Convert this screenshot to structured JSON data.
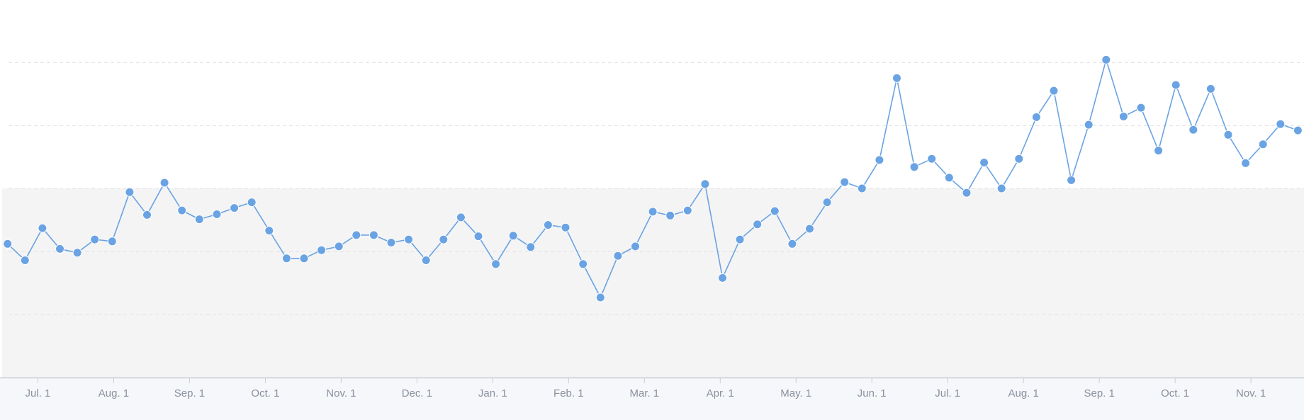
{
  "chart_data": {
    "type": "line",
    "title": "",
    "xlabel": "",
    "ylabel": "",
    "x_tick_labels": [
      "Jul. 1",
      "Aug. 1",
      "Sep. 1",
      "Oct. 1",
      "Nov. 1",
      "Dec. 1",
      "Jan. 1",
      "Feb. 1",
      "Mar. 1",
      "Apr. 1",
      "May. 1",
      "Jun. 1",
      "Jul. 1",
      "Aug. 1",
      "Sep. 1",
      "Oct. 1",
      "Nov. 1"
    ],
    "x_tick_month_offsets": [
      0,
      1,
      2,
      3,
      4,
      5,
      6,
      7,
      8,
      9,
      10,
      11,
      12,
      13,
      14,
      15,
      16
    ],
    "x_range_months": [
      -0.5,
      16.7
    ],
    "y_range": [
      0,
      6
    ],
    "y_gridlines": [
      1,
      2,
      3,
      4,
      5
    ],
    "shaded_band_y": [
      0,
      3
    ],
    "grid": true,
    "legend": "none",
    "series": [
      {
        "color": "#6aa3e3",
        "x_months": [
          -0.4,
          -0.17,
          0.06,
          0.29,
          0.52,
          0.75,
          0.98,
          1.21,
          1.44,
          1.67,
          1.9,
          2.13,
          2.36,
          2.59,
          2.82,
          3.05,
          3.28,
          3.51,
          3.74,
          3.97,
          4.2,
          4.43,
          4.66,
          4.89,
          5.12,
          5.35,
          5.58,
          5.81,
          6.04,
          6.27,
          6.5,
          6.73,
          6.96,
          7.19,
          7.42,
          7.65,
          7.88,
          8.11,
          8.34,
          8.57,
          8.8,
          9.03,
          9.26,
          9.49,
          9.72,
          9.95,
          10.18,
          10.41,
          10.64,
          10.87,
          11.1,
          11.33,
          11.56,
          11.79,
          12.02,
          12.25,
          12.48,
          12.71,
          12.94,
          13.17,
          13.4,
          13.63,
          13.86,
          14.09,
          14.32,
          14.55,
          14.78,
          15.01,
          15.24,
          15.47,
          15.7,
          15.93,
          16.16,
          16.39,
          16.62
        ],
        "values": [
          2.12,
          1.86,
          2.37,
          2.04,
          1.98,
          2.19,
          2.16,
          2.94,
          2.58,
          3.09,
          2.65,
          2.51,
          2.59,
          2.69,
          2.78,
          2.33,
          1.89,
          1.89,
          2.02,
          2.08,
          2.26,
          2.26,
          2.14,
          2.19,
          1.86,
          2.19,
          2.54,
          2.24,
          1.8,
          2.25,
          2.07,
          2.42,
          2.38,
          1.8,
          1.27,
          1.93,
          2.08,
          2.63,
          2.57,
          2.65,
          3.07,
          1.58,
          2.19,
          2.43,
          2.64,
          2.12,
          2.36,
          2.78,
          3.1,
          3.0,
          3.45,
          4.75,
          3.34,
          3.47,
          3.17,
          2.93,
          3.41,
          3.0,
          3.47,
          4.13,
          4.55,
          3.13,
          4.01,
          5.04,
          4.14,
          4.28,
          3.6,
          4.64,
          3.93,
          4.58,
          3.85,
          3.4,
          3.7,
          4.02,
          3.92
        ]
      }
    ]
  }
}
